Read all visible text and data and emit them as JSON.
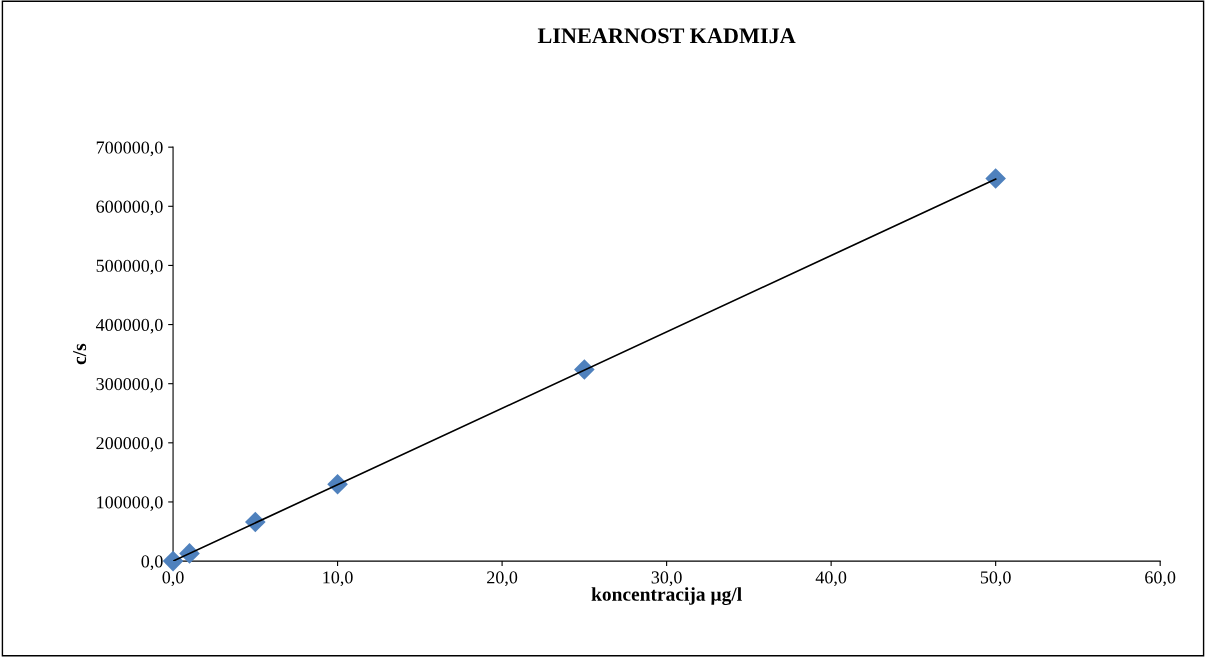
{
  "chart_data": {
    "type": "scatter",
    "title": "LINEARNOST KADMIJA",
    "xlabel": "koncentracija µg/l",
    "ylabel": "c/s",
    "x": [
      0,
      1,
      5,
      10,
      25,
      50
    ],
    "series": [
      {
        "color": "#4f81bd",
        "marker": "diamond",
        "values": [
          0,
          13000,
          66000,
          130000,
          324000,
          647000
        ]
      },
      {
        "type": "line",
        "color": "#000000",
        "marker": "none",
        "line_style": "solid",
        "x": [
          0,
          50
        ],
        "values": [
          0,
          646000
        ]
      }
    ],
    "xlim": [
      0,
      60
    ],
    "xticks": [
      {
        "value": 0,
        "label": "0,0"
      },
      {
        "value": 10,
        "label": "10,0"
      },
      {
        "value": 20,
        "label": "20,0"
      },
      {
        "value": 30,
        "label": "30,0"
      },
      {
        "value": 40,
        "label": "40,0"
      },
      {
        "value": 50,
        "label": "50,0"
      },
      {
        "value": 60,
        "label": "60,0"
      }
    ],
    "ylim": [
      0,
      700000
    ],
    "yticks": [
      {
        "value": 0,
        "label": "0,0"
      },
      {
        "value": 100000,
        "label": "100000,0"
      },
      {
        "value": 200000,
        "label": "200000,0"
      },
      {
        "value": 300000,
        "label": "300000,0"
      },
      {
        "value": 400000,
        "label": "400000,0"
      },
      {
        "value": 500000,
        "label": "500000,0"
      },
      {
        "value": 600000,
        "label": "600000,0"
      },
      {
        "value": 700000,
        "label": "700000,0"
      }
    ],
    "grid": false,
    "legend": false
  }
}
